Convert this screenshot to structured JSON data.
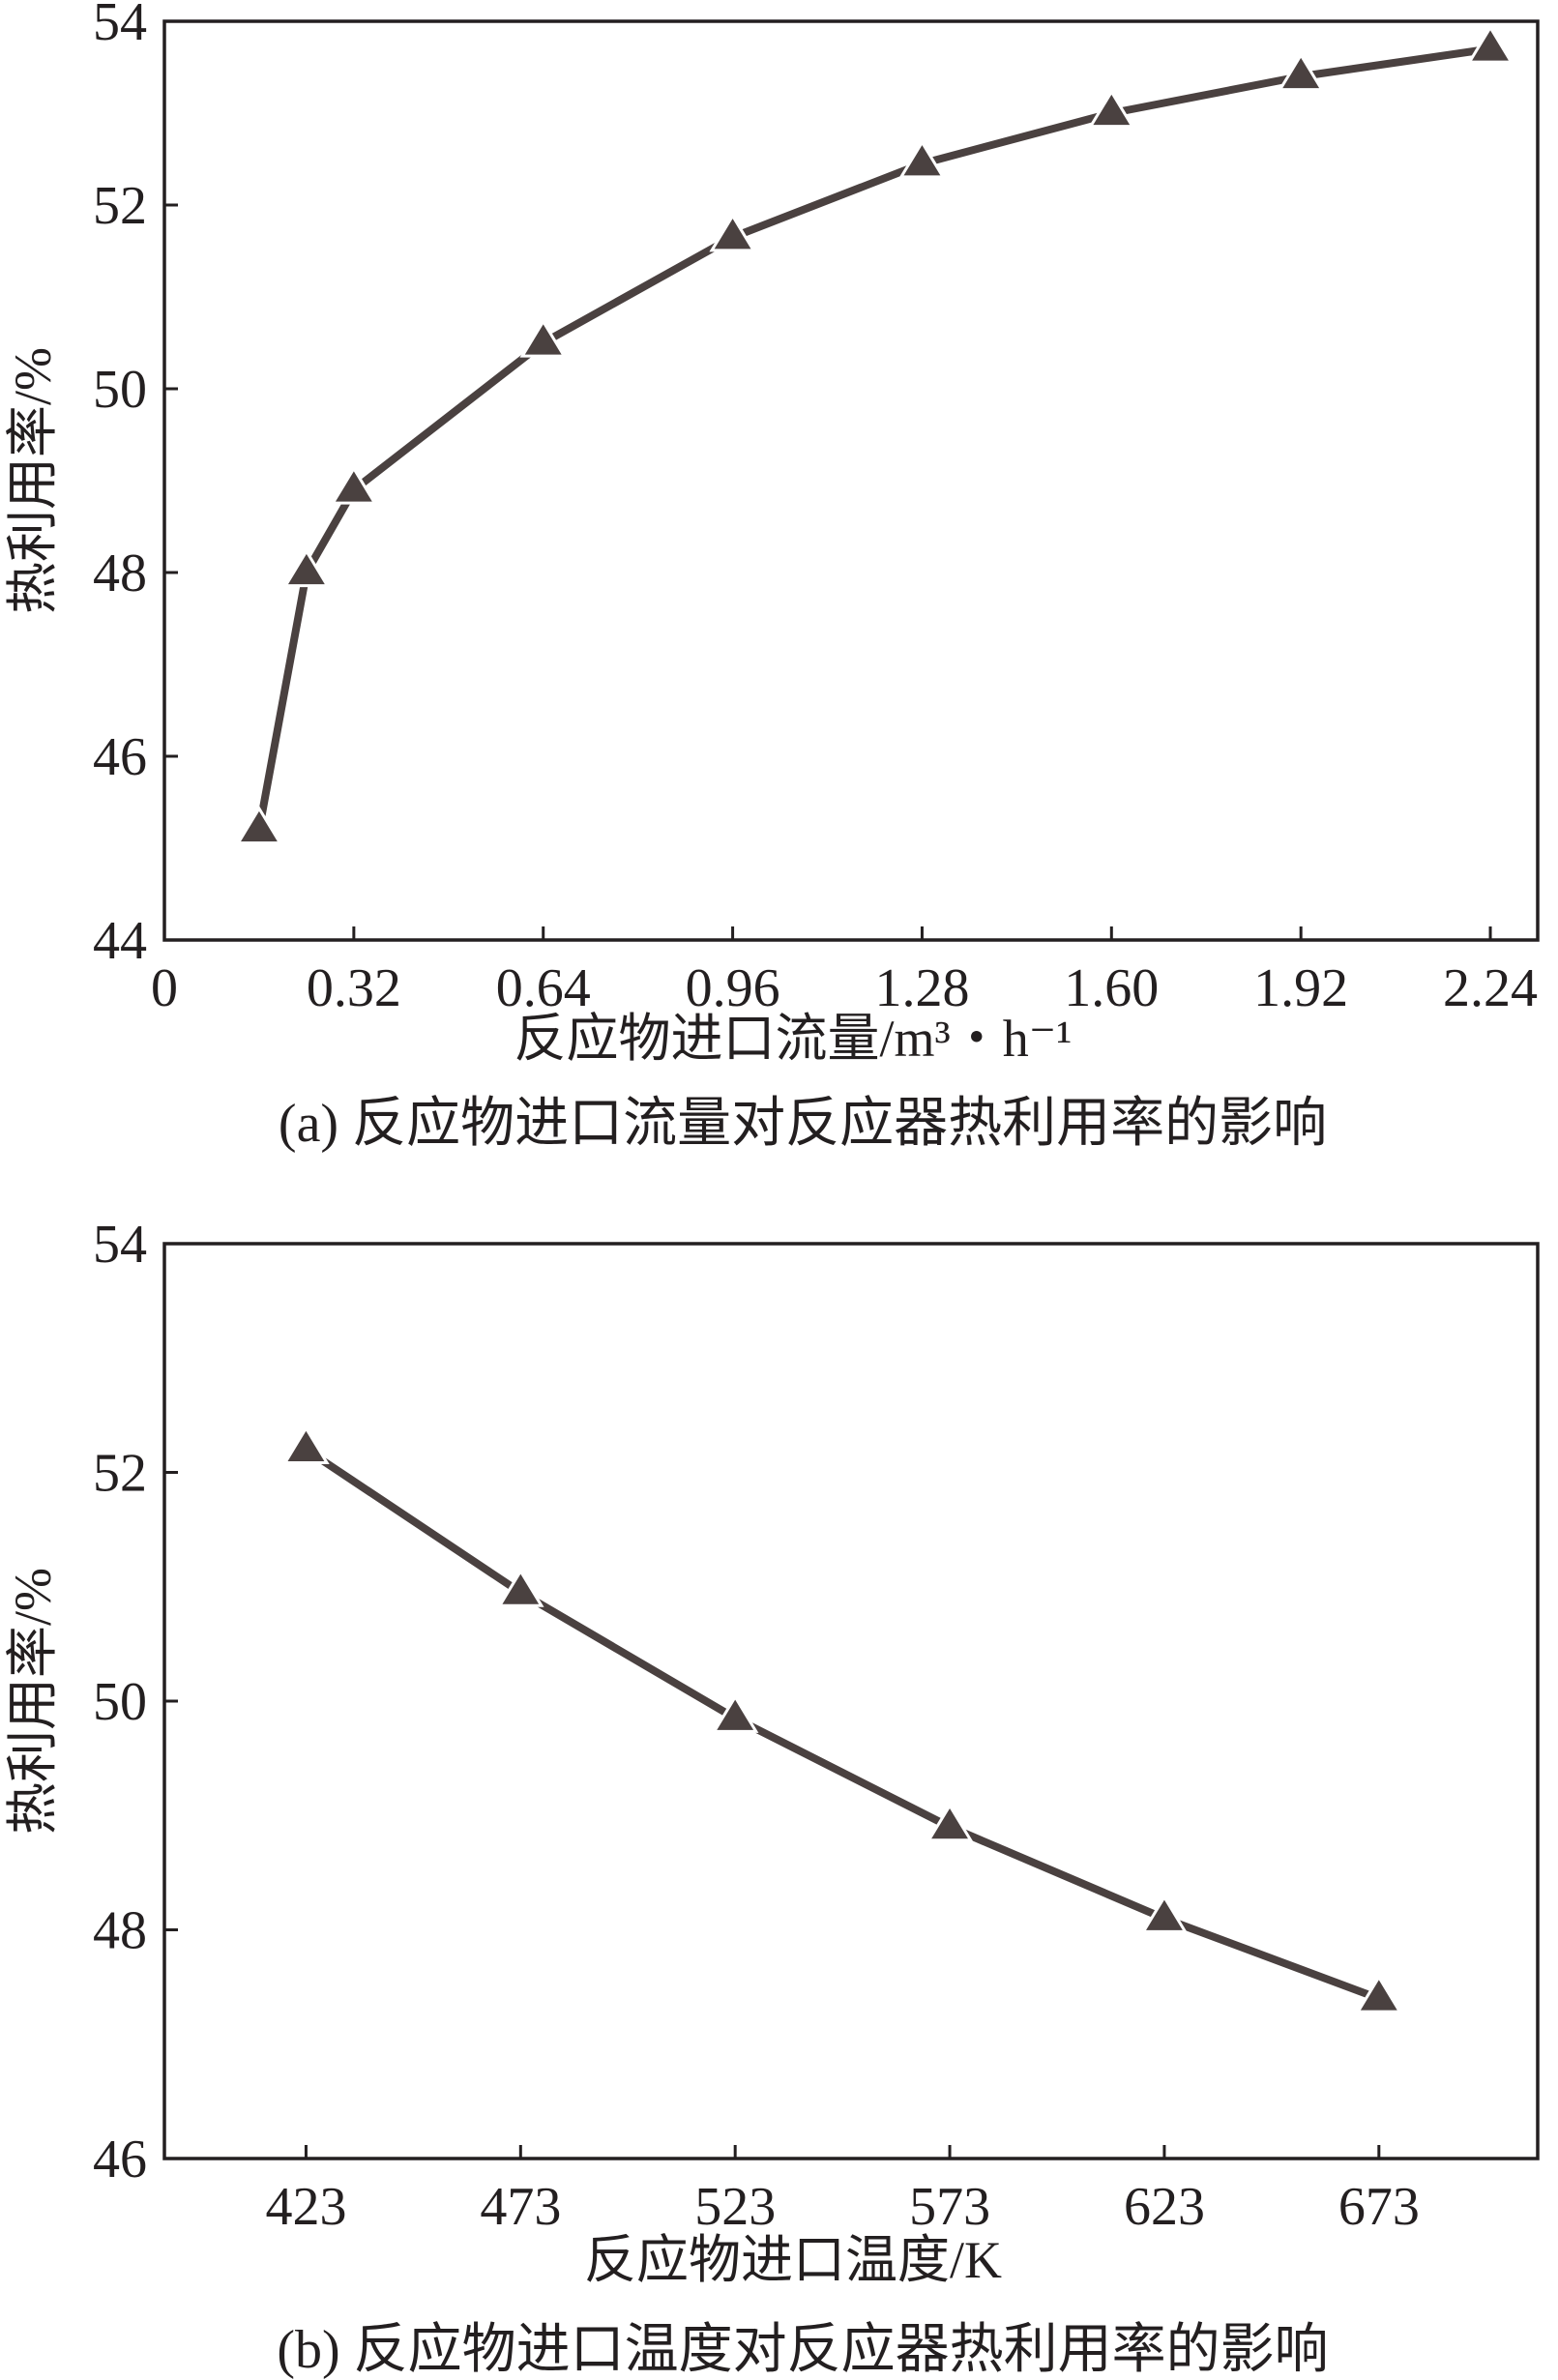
{
  "chart_data": [
    {
      "type": "line",
      "caption": "(a) 反应物进口流量对反应器热利用率的影响",
      "xlabel": "反应物进口流量/m³・h⁻¹",
      "ylabel": "热利用率/%",
      "xlim": [
        0,
        2.32
      ],
      "ylim": [
        44,
        54
      ],
      "xticks": [
        0,
        0.32,
        0.64,
        0.96,
        1.28,
        1.6,
        1.92,
        2.24
      ],
      "xtick_labels": [
        "0",
        "0.32",
        "0.64",
        "0.96",
        "1.28",
        "1.60",
        "1.92",
        "2.24"
      ],
      "yticks": [
        44,
        46,
        48,
        50,
        52,
        54
      ],
      "ytick_labels": [
        "44",
        "46",
        "48",
        "50",
        "52",
        "54"
      ],
      "grid": false,
      "marker": "triangle",
      "line_color": "#4a4140",
      "x": [
        0.16,
        0.24,
        0.32,
        0.64,
        0.96,
        1.28,
        1.6,
        1.92,
        2.24
      ],
      "y": [
        45.2,
        48.0,
        48.9,
        50.5,
        51.65,
        52.45,
        53.0,
        53.4,
        53.7
      ]
    },
    {
      "type": "line",
      "caption": "(b) 反应物进口温度对反应器热利用率的影响",
      "xlabel": "反应物进口温度/K",
      "ylabel": "热利用率/%",
      "xlim": [
        390,
        710
      ],
      "ylim": [
        46,
        54
      ],
      "xticks": [
        423,
        473,
        523,
        573,
        623,
        673
      ],
      "xtick_labels": [
        "423",
        "473",
        "523",
        "573",
        "623",
        "673"
      ],
      "yticks": [
        46,
        48,
        50,
        52,
        54
      ],
      "ytick_labels": [
        "46",
        "48",
        "50",
        "52",
        "54"
      ],
      "grid": false,
      "marker": "triangle",
      "line_color": "#4a4140",
      "x": [
        423,
        473,
        523,
        573,
        623,
        673
      ],
      "y": [
        52.2,
        50.95,
        49.85,
        48.9,
        48.1,
        47.4
      ]
    }
  ]
}
